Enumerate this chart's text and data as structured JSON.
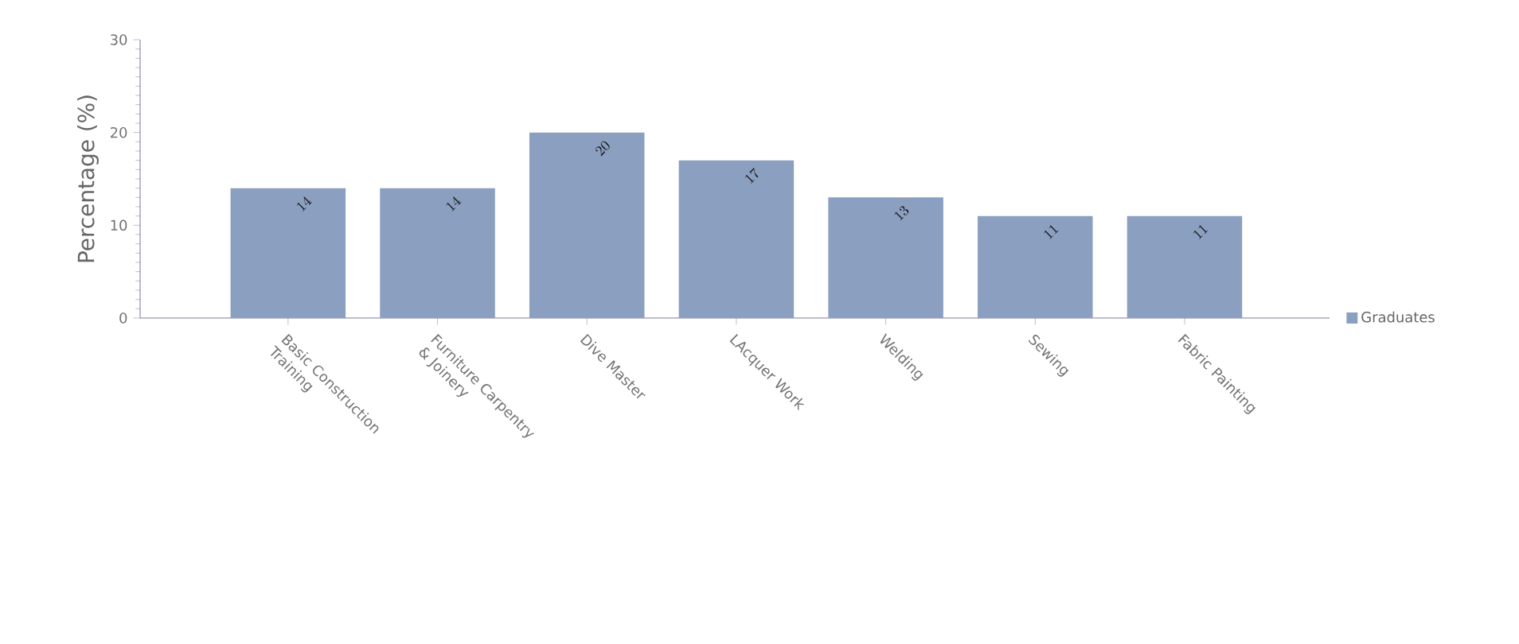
{
  "chart_data": {
    "type": "bar",
    "ylabel": "Percentage (%)",
    "categories": [
      "Basic Construction Training",
      "Furniture Carpentry & Joinery",
      "Dive Master",
      "LAcquer Work",
      "Welding",
      "Sewing",
      "Fabric Painting"
    ],
    "series": [
      {
        "name": "Graduates",
        "color": "#8b9fc0",
        "values": [
          14,
          14,
          20,
          17,
          13,
          11,
          11
        ]
      }
    ],
    "ylim": [
      0,
      30
    ],
    "yticks": [
      0,
      10,
      20,
      30
    ],
    "data_labels": true,
    "legend": "right",
    "grid": false
  }
}
